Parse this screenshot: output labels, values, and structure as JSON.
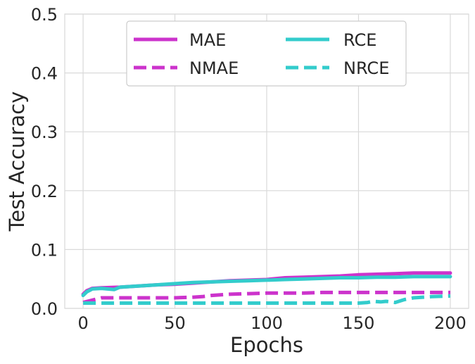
{
  "chart_data": {
    "type": "line",
    "title": "",
    "xlabel": "Epochs",
    "ylabel": "Test Accuracy",
    "xlim": [
      -10,
      210
    ],
    "ylim": [
      0.0,
      0.5
    ],
    "xticks": [
      0,
      50,
      100,
      150,
      200
    ],
    "xtick_labels": [
      "0",
      "50",
      "100",
      "150",
      "200"
    ],
    "yticks": [
      0.0,
      0.1,
      0.2,
      0.3,
      0.4,
      0.5
    ],
    "ytick_labels": [
      "0.0",
      "0.1",
      "0.2",
      "0.3",
      "0.4",
      "0.5"
    ],
    "grid": true,
    "legend": {
      "position": "upper center",
      "columns": 2
    },
    "series": [
      {
        "name": "MAE",
        "color": "#cc33cc",
        "style": "solid",
        "x": [
          0,
          2,
          5,
          10,
          20,
          30,
          40,
          50,
          60,
          70,
          80,
          90,
          100,
          110,
          120,
          130,
          140,
          150,
          160,
          170,
          180,
          190,
          200
        ],
        "y": [
          0.024,
          0.03,
          0.034,
          0.035,
          0.036,
          0.038,
          0.04,
          0.041,
          0.043,
          0.045,
          0.047,
          0.048,
          0.049,
          0.052,
          0.053,
          0.054,
          0.055,
          0.057,
          0.058,
          0.059,
          0.06,
          0.06,
          0.06
        ]
      },
      {
        "name": "NMAE",
        "color": "#cc33cc",
        "style": "dashed",
        "x": [
          0,
          5,
          10,
          20,
          30,
          40,
          50,
          60,
          65,
          70,
          80,
          90,
          100,
          110,
          120,
          130,
          140,
          150,
          160,
          170,
          180,
          190,
          200
        ],
        "y": [
          0.01,
          0.014,
          0.018,
          0.018,
          0.018,
          0.018,
          0.018,
          0.019,
          0.02,
          0.022,
          0.024,
          0.025,
          0.026,
          0.026,
          0.026,
          0.027,
          0.027,
          0.027,
          0.027,
          0.027,
          0.027,
          0.027,
          0.027
        ]
      },
      {
        "name": "RCE",
        "color": "#33cccc",
        "style": "solid",
        "x": [
          0,
          2,
          5,
          10,
          17,
          20,
          30,
          40,
          50,
          60,
          70,
          80,
          90,
          100,
          110,
          120,
          130,
          140,
          150,
          160,
          170,
          180,
          190,
          200
        ],
        "y": [
          0.022,
          0.028,
          0.033,
          0.034,
          0.032,
          0.036,
          0.038,
          0.04,
          0.042,
          0.044,
          0.045,
          0.046,
          0.047,
          0.048,
          0.049,
          0.05,
          0.051,
          0.052,
          0.052,
          0.053,
          0.053,
          0.054,
          0.054,
          0.054
        ]
      },
      {
        "name": "NRCE",
        "color": "#33cccc",
        "style": "dashed",
        "x": [
          0,
          20,
          40,
          60,
          80,
          100,
          120,
          140,
          150,
          155,
          158,
          162,
          165,
          170,
          175,
          180,
          190,
          200
        ],
        "y": [
          0.009,
          0.009,
          0.009,
          0.009,
          0.009,
          0.009,
          0.009,
          0.009,
          0.009,
          0.01,
          0.012,
          0.011,
          0.012,
          0.01,
          0.015,
          0.018,
          0.02,
          0.021
        ]
      }
    ]
  }
}
